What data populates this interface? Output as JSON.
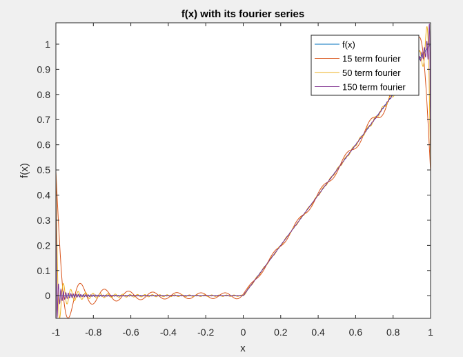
{
  "chart_data": {
    "type": "line",
    "title": "f(x) with its fourier series",
    "xlabel": "x",
    "ylabel": "f(x)",
    "xlim": [
      -1,
      1
    ],
    "ylim": [
      -0.09,
      1.085
    ],
    "xticks": [
      -1,
      -0.8,
      -0.6,
      -0.4,
      -0.2,
      0,
      0.2,
      0.4,
      0.6,
      0.8,
      1
    ],
    "xtick_labels": [
      "-1",
      "-0.8",
      "-0.6",
      "-0.4",
      "-0.2",
      "0",
      "0.2",
      "0.4",
      "0.6",
      "0.8",
      "1"
    ],
    "yticks": [
      0,
      0.1,
      0.2,
      0.3,
      0.4,
      0.5,
      0.6,
      0.7,
      0.8,
      0.9,
      1
    ],
    "ytick_labels": [
      "0",
      "0.1",
      "0.2",
      "0.3",
      "0.4",
      "0.5",
      "0.6",
      "0.7",
      "0.8",
      "0.9",
      "1"
    ],
    "grid": false,
    "legend_position": "top-right",
    "series": [
      {
        "name": "f(x)",
        "terms": 0,
        "color": "#0072BD"
      },
      {
        "name": "15 term fourier",
        "terms": 15,
        "color": "#D95319"
      },
      {
        "name": "50 term fourier",
        "terms": 50,
        "color": "#EDB120"
      },
      {
        "name": "150 term fourier",
        "terms": 150,
        "color": "#7E2F8E"
      }
    ],
    "sample_x": [
      -1,
      -0.8,
      -0.6,
      -0.4,
      -0.2,
      0,
      0.2,
      0.4,
      0.6,
      0.8,
      1
    ],
    "sample_fx": [
      0,
      0,
      0,
      0,
      0,
      0,
      0.2,
      0.4,
      0.6,
      0.8,
      1
    ]
  }
}
